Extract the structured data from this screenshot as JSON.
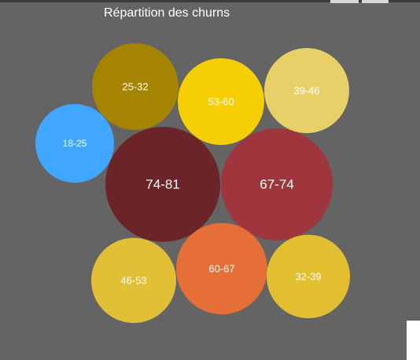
{
  "chart_data": {
    "type": "bubble",
    "title": "Répartition des churns",
    "bubbles": [
      {
        "label": "74-81",
        "color": "#6b2427",
        "rank": 1
      },
      {
        "label": "67-74",
        "color": "#a0363d",
        "rank": 2
      },
      {
        "label": "60-67",
        "color": "#e56f36",
        "rank": 3
      },
      {
        "label": "53-60",
        "color": "#f5cf04",
        "rank": 4
      },
      {
        "label": "25-32",
        "color": "#a58402",
        "rank": 5
      },
      {
        "label": "39-46",
        "color": "#e8d068",
        "rank": 6
      },
      {
        "label": "32-39",
        "color": "#e1bf30",
        "rank": 7
      },
      {
        "label": "46-53",
        "color": "#e1bf36",
        "rank": 8
      },
      {
        "label": "18-25",
        "color": "#40a6ff",
        "rank": 9
      }
    ]
  }
}
